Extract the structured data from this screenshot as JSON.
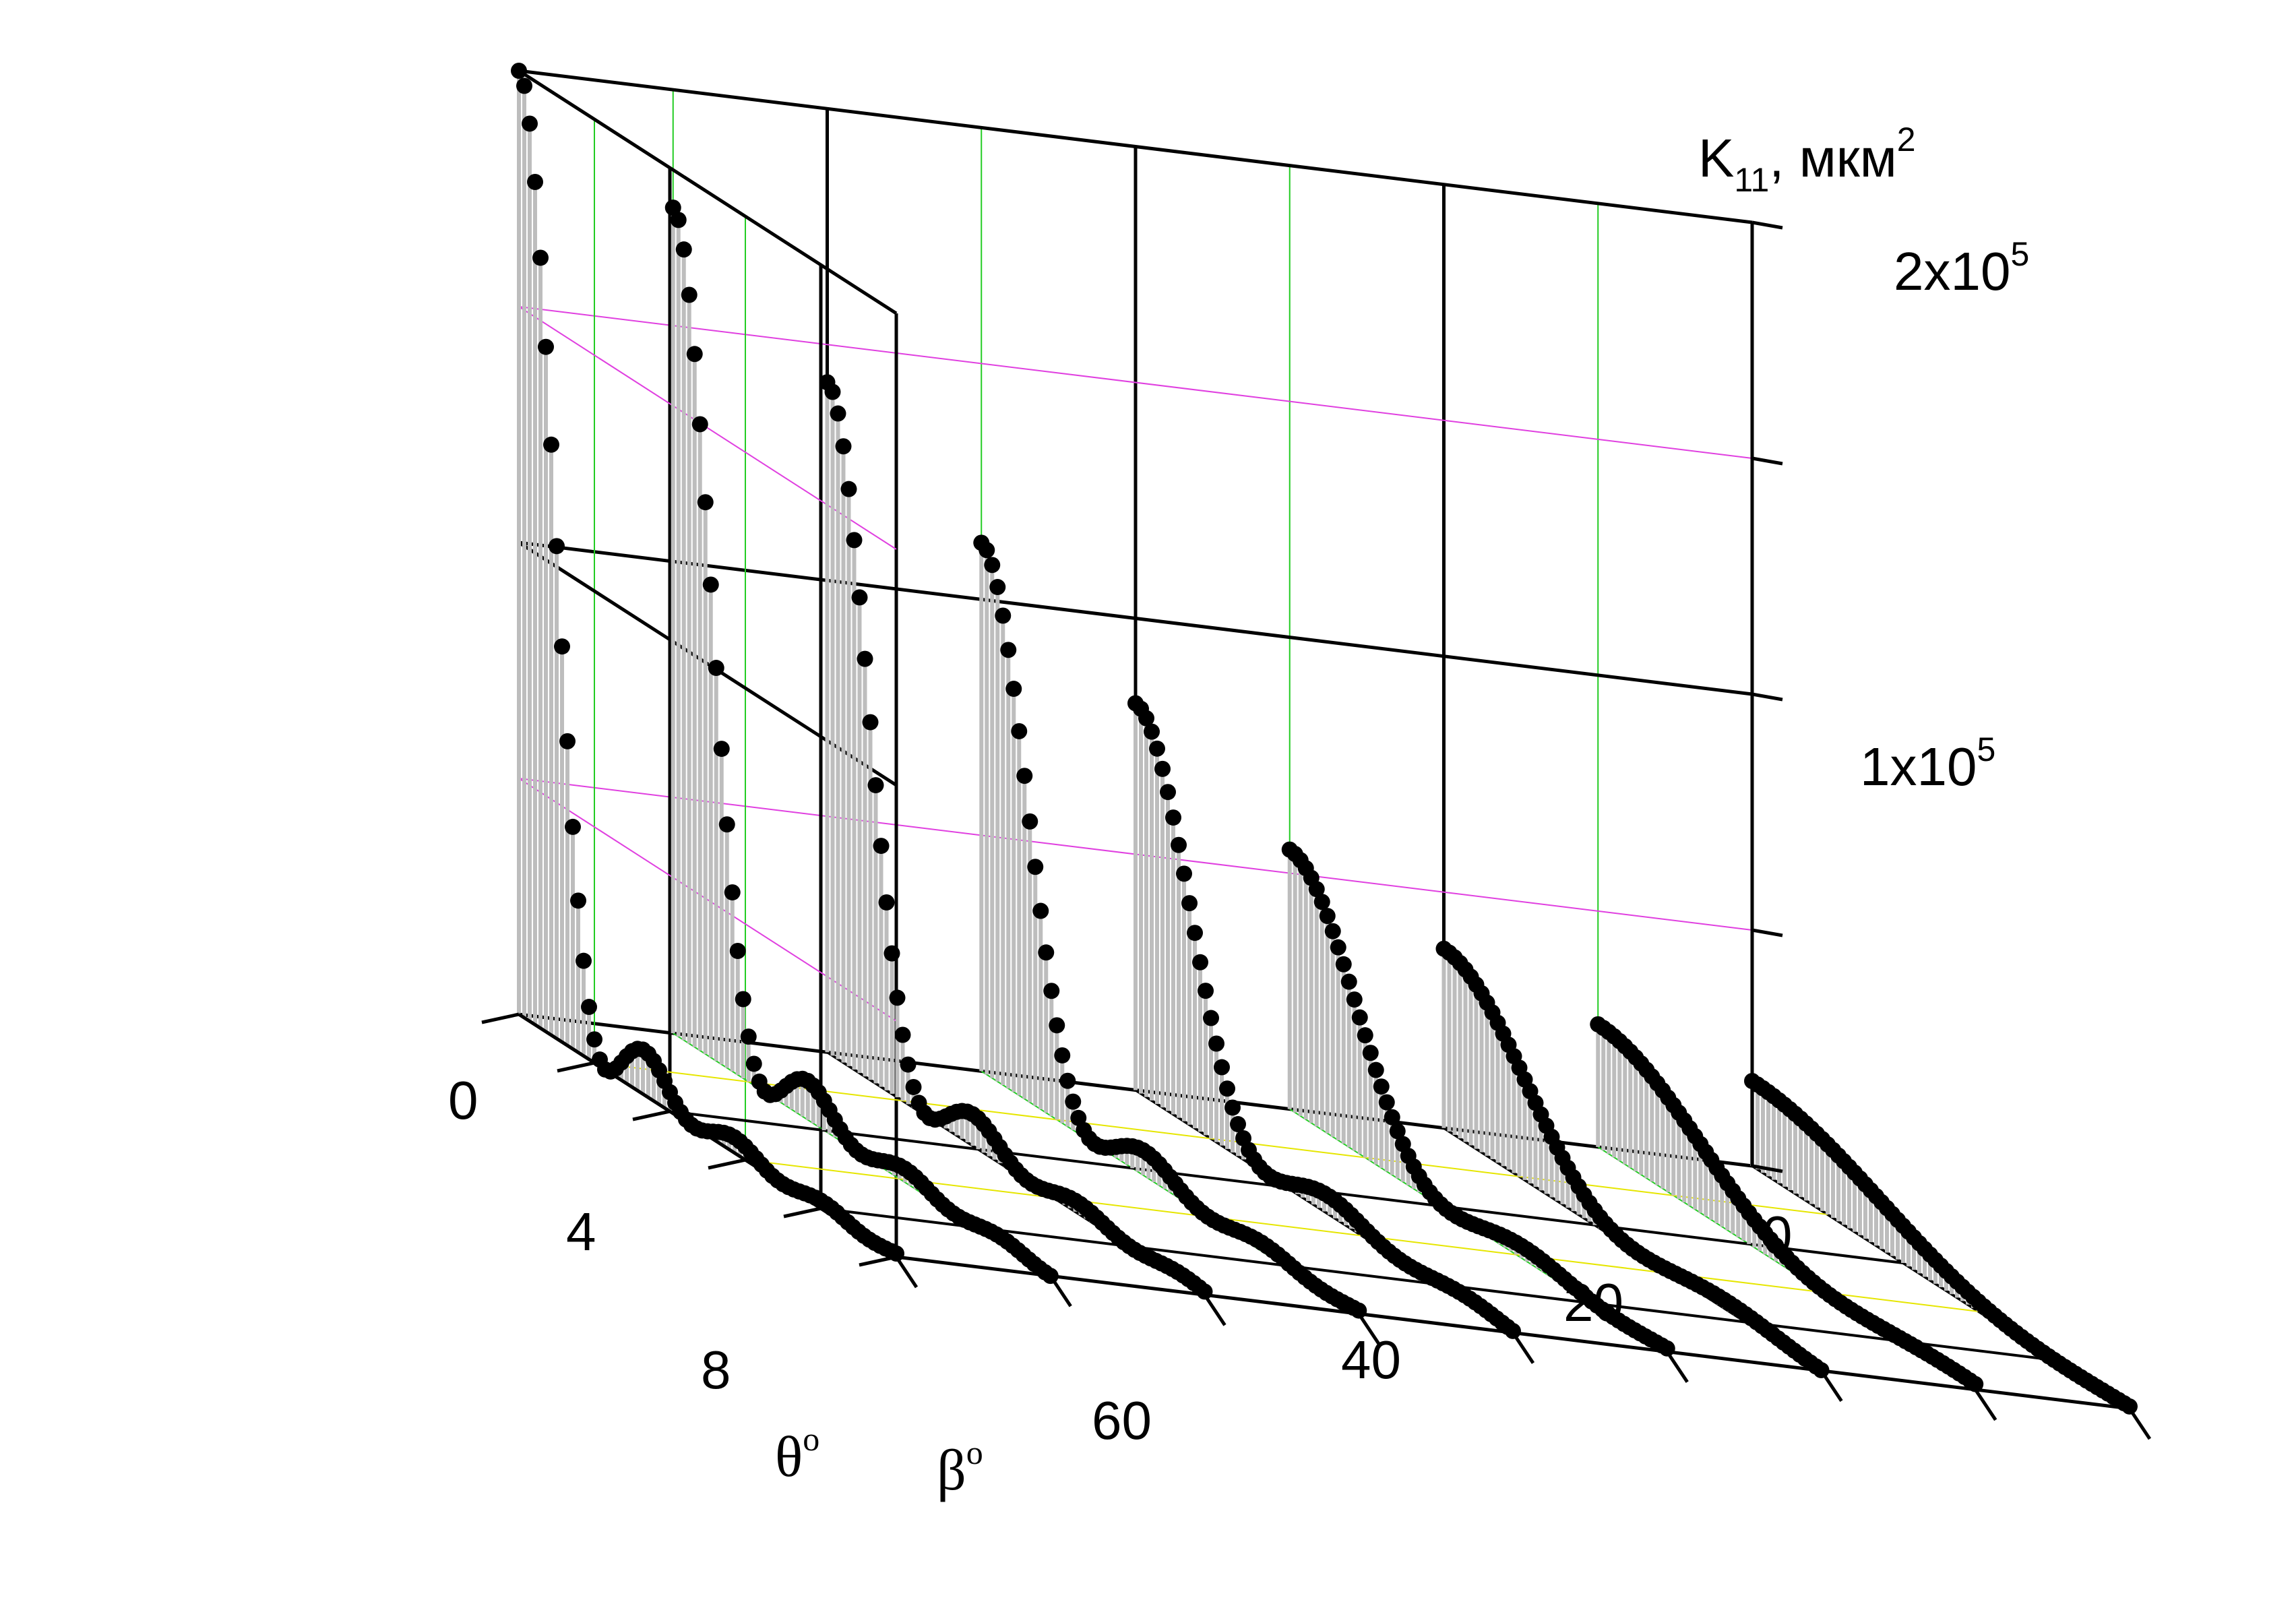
{
  "chart_data": {
    "type": "line",
    "chart_kind": "3d-waterfall",
    "title": "",
    "z_axis": {
      "label_main": "K",
      "label_sub": "11",
      "label_rest": ", мкм",
      "label_sup": "2",
      "ticks": [
        {
          "base": "1x10",
          "exp": "5",
          "value": 100000
        },
        {
          "base": "2x10",
          "exp": "5",
          "value": 200000
        }
      ],
      "range": [
        0,
        200000
      ]
    },
    "theta_axis": {
      "label": "θ",
      "label_sup": "o",
      "ticks": [
        "0",
        "4",
        "8"
      ],
      "range": [
        0,
        10
      ]
    },
    "beta_axis": {
      "label": "β",
      "label_sup": "o",
      "ticks": [
        "0",
        "20",
        "40",
        "60"
      ],
      "range": [
        0,
        80
      ]
    },
    "grid": true,
    "colors": {
      "curve": "#000000",
      "fill": "#bdbdbd",
      "axes": "#000000",
      "grid_green": "#22cc22",
      "grid_magenta": "#e040e0",
      "grid_yellow": "#e6e600"
    },
    "series": [
      {
        "beta": 0,
        "peak": 18000,
        "lobes": 1.2
      },
      {
        "beta": 10,
        "peak": 26000,
        "lobes": 1.5
      },
      {
        "beta": 20,
        "peak": 38000,
        "lobes": 1.9
      },
      {
        "beta": 30,
        "peak": 55000,
        "lobes": 2.3
      },
      {
        "beta": 40,
        "peak": 82000,
        "lobes": 2.8
      },
      {
        "beta": 50,
        "peak": 112000,
        "lobes": 3.3
      },
      {
        "beta": 60,
        "peak": 142000,
        "lobes": 3.7
      },
      {
        "beta": 70,
        "peak": 175000,
        "lobes": 4.0
      },
      {
        "beta": 80,
        "peak": 200000,
        "lobes": 4.3
      }
    ]
  }
}
